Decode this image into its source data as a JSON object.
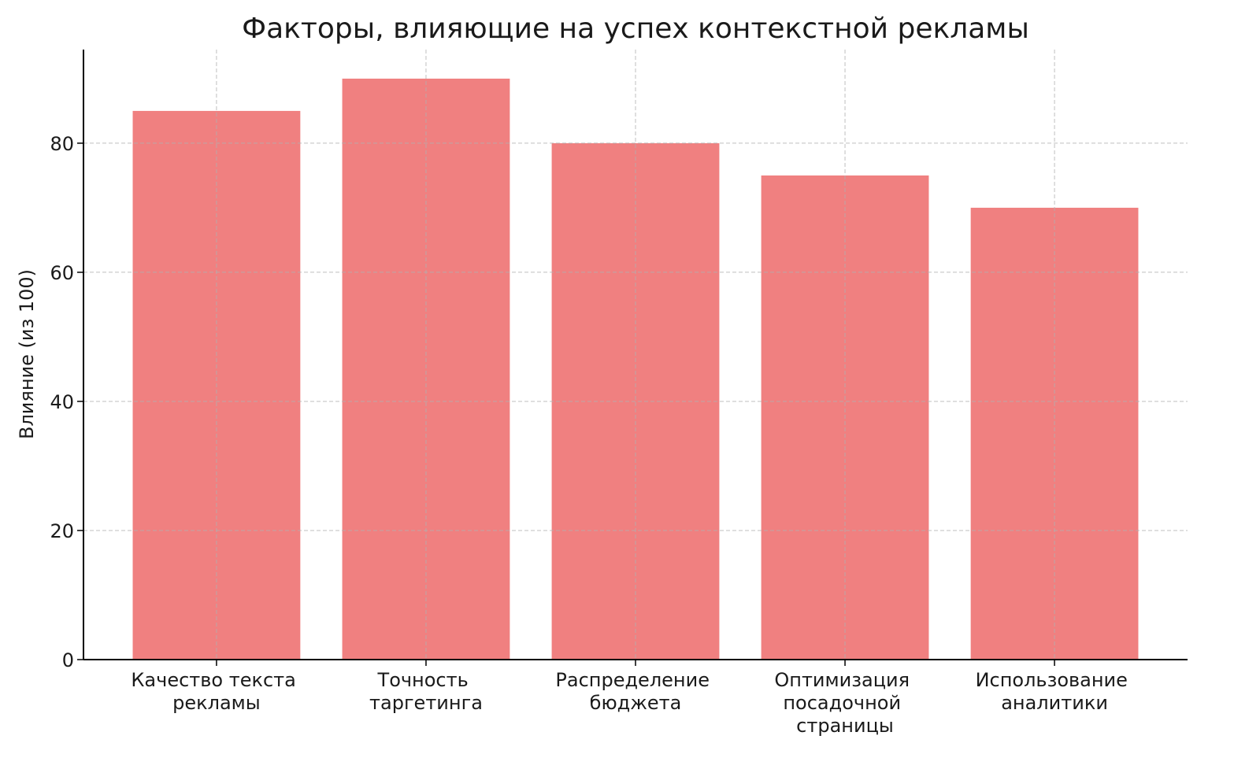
{
  "chart_data": {
    "type": "bar",
    "title": "Факторы, влияющие на успех контекстной рекламы",
    "xlabel": "",
    "ylabel": "Влияние (из 100)",
    "categories": [
      "Качество текста рекламы",
      "Точность таргетинга",
      "Распределение бюджета",
      "Оптимизация посадочной страницы",
      "Использование аналитики"
    ],
    "values": [
      85,
      90,
      80,
      75,
      70
    ],
    "ylim": [
      0,
      94.5
    ],
    "yticks": [
      0,
      20,
      40,
      60,
      80
    ],
    "grid": true,
    "grid_style": "dashed",
    "bar_color": "#f08080"
  }
}
